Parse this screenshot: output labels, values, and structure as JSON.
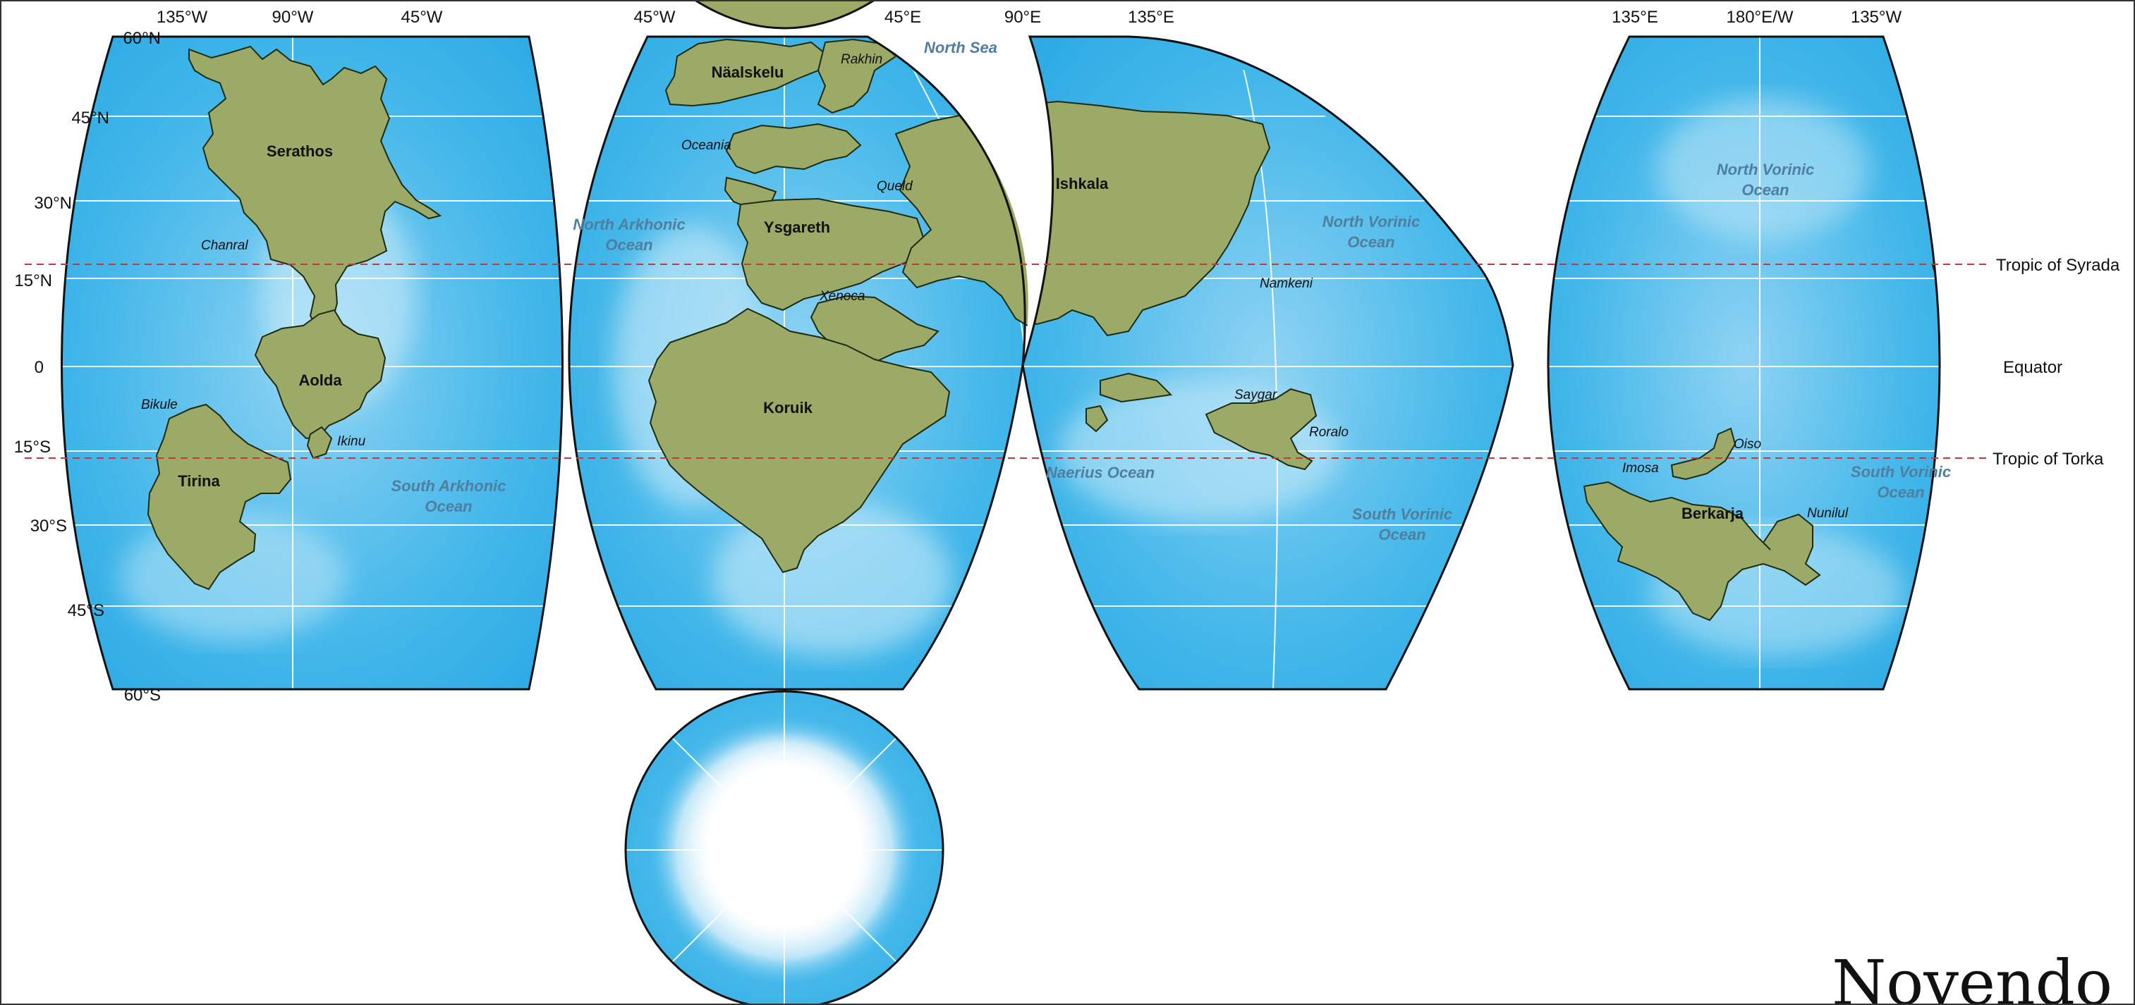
{
  "map": {
    "title": "Novendo",
    "longitude_labels": {
      "lobe1": [
        "135°W",
        "90°W",
        "45°W"
      ],
      "lobe2": [
        "45°W",
        "45°E",
        "90°E",
        "135°E"
      ],
      "lobe3": [
        "135°E",
        "180°E/W",
        "135°W"
      ]
    },
    "latitude_labels": [
      "60°N",
      "45°N",
      "30°N",
      "15°N",
      "0",
      "15°S",
      "30°S",
      "45°S",
      "60°S"
    ],
    "reference_lines": {
      "tropic_north": "Tropic of Syrada",
      "equator": "Equator",
      "tropic_south": "Tropic of Torka"
    },
    "landmasses": [
      "Serathos",
      "Aolda",
      "Tirina",
      "Näalskelu",
      "Ysgareth",
      "Koruik",
      "Ishkala",
      "Berkarja"
    ],
    "places": [
      "Chanral",
      "Bikule",
      "Ikinu",
      "Rakhin",
      "Oceania",
      "Queld",
      "Xenoca",
      "Namkeni",
      "Saygar",
      "Roralo",
      "Imosa",
      "Oiso",
      "Nunilul"
    ],
    "oceans": {
      "south_arkhonic": [
        "South Arkhonic",
        "Ocean"
      ],
      "north_arkhonic": [
        "North Arkhonic",
        "Ocean"
      ],
      "north_vorinic_1": [
        "North Vorinic",
        "Ocean"
      ],
      "north_vorinic_2": [
        "North Vorinic",
        "Ocean"
      ],
      "south_vorinic_1": [
        "South Vorinic",
        "Ocean"
      ],
      "south_vorinic_2": [
        "South Vorinic",
        "Ocean"
      ],
      "north_sea": "North Sea",
      "naerius": "Naerius Ocean"
    },
    "colors": {
      "ocean": "#39b2e8",
      "ocean_light": "#bfe6f8",
      "land": "#9bab67",
      "land_outline": "#1f2a12",
      "grid": "#ffffff",
      "tropic_line": "#c23a3a",
      "ice": "#ffffff"
    }
  }
}
